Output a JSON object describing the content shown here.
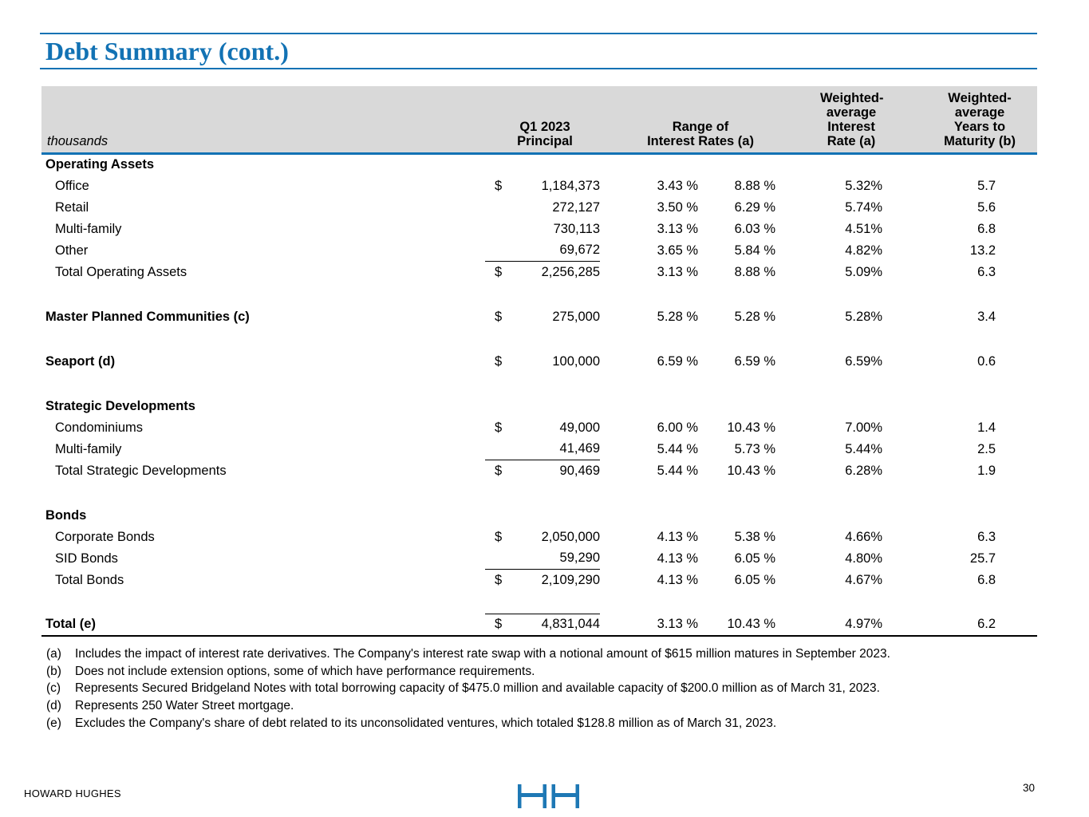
{
  "page": {
    "title": "Debt Summary (cont.)",
    "footer_brand": "HOWARD HUGHES",
    "page_number": "30"
  },
  "colors": {
    "accent_blue": "#1272b4",
    "header_gray": "#d9d9d9",
    "logo_blue": "#1e78b5"
  },
  "table": {
    "unit_label": "thousands",
    "column_headers": [
      {
        "lines": [
          "Q1 2023",
          "Principal"
        ]
      },
      {
        "lines": [
          "Range of",
          "Interest Rates (a)"
        ]
      },
      {
        "lines": [
          "Weighted-",
          "average",
          "Interest",
          "Rate (a)"
        ]
      },
      {
        "lines": [
          "Weighted-",
          "average",
          "Years to",
          "Maturity (b)"
        ]
      }
    ],
    "rows": [
      {
        "style": "section",
        "label": "Operating Assets"
      },
      {
        "style": "item",
        "label": "Office",
        "dollar": "$",
        "principal": "1,184,373",
        "rate_min": "3.43 %",
        "rate_max": "8.88 %",
        "wa_rate": "5.32%",
        "wa_years": "5.7"
      },
      {
        "style": "item",
        "label": "Retail",
        "dollar": "",
        "principal": "272,127",
        "rate_min": "3.50 %",
        "rate_max": "6.29 %",
        "wa_rate": "5.74%",
        "wa_years": "5.6"
      },
      {
        "style": "item",
        "label": "Multi-family",
        "dollar": "",
        "principal": "730,113",
        "rate_min": "3.13 %",
        "rate_max": "6.03 %",
        "wa_rate": "4.51%",
        "wa_years": "6.8"
      },
      {
        "style": "item",
        "label": "Other",
        "dollar": "",
        "principal": "69,672",
        "rate_min": "3.65 %",
        "rate_max": "5.84 %",
        "wa_rate": "4.82%",
        "wa_years": "13.2",
        "underline": true
      },
      {
        "style": "item",
        "label": "Total Operating Assets",
        "dollar": "$",
        "principal": "2,256,285",
        "rate_min": "3.13 %",
        "rate_max": "8.88 %",
        "wa_rate": "5.09%",
        "wa_years": "6.3"
      },
      {
        "style": "spacer"
      },
      {
        "style": "section-data",
        "label": "Master Planned Communities (c)",
        "dollar": "$",
        "principal": "275,000",
        "rate_min": "5.28 %",
        "rate_max": "5.28 %",
        "wa_rate": "5.28%",
        "wa_years": "3.4"
      },
      {
        "style": "spacer"
      },
      {
        "style": "section-data",
        "label": "Seaport (d)",
        "dollar": "$",
        "principal": "100,000",
        "rate_min": "6.59 %",
        "rate_max": "6.59 %",
        "wa_rate": "6.59%",
        "wa_years": "0.6"
      },
      {
        "style": "spacer"
      },
      {
        "style": "section",
        "label": "Strategic Developments"
      },
      {
        "style": "item",
        "label": "Condominiums",
        "dollar": "$",
        "principal": "49,000",
        "rate_min": "6.00 %",
        "rate_max": "10.43 %",
        "wa_rate": "7.00%",
        "wa_years": "1.4"
      },
      {
        "style": "item",
        "label": "Multi-family",
        "dollar": "",
        "principal": "41,469",
        "rate_min": "5.44 %",
        "rate_max": "5.73 %",
        "wa_rate": "5.44%",
        "wa_years": "2.5",
        "underline": true
      },
      {
        "style": "item",
        "label": "Total Strategic Developments",
        "dollar": "$",
        "principal": "90,469",
        "rate_min": "5.44 %",
        "rate_max": "10.43 %",
        "wa_rate": "6.28%",
        "wa_years": "1.9"
      },
      {
        "style": "spacer"
      },
      {
        "style": "section",
        "label": "Bonds"
      },
      {
        "style": "item",
        "label": "Corporate Bonds",
        "dollar": "$",
        "principal": "2,050,000",
        "rate_min": "4.13 %",
        "rate_max": "5.38 %",
        "wa_rate": "4.66%",
        "wa_years": "6.3"
      },
      {
        "style": "item",
        "label": "SID Bonds",
        "dollar": "",
        "principal": "59,290",
        "rate_min": "4.13 %",
        "rate_max": "6.05 %",
        "wa_rate": "4.80%",
        "wa_years": "25.7",
        "underline": true
      },
      {
        "style": "item",
        "label": "Total Bonds",
        "dollar": "$",
        "principal": "2,109,290",
        "rate_min": "4.13 %",
        "rate_max": "6.05 %",
        "wa_rate": "4.67%",
        "wa_years": "6.8"
      },
      {
        "style": "spacer"
      },
      {
        "style": "grand-total",
        "label": "Total (e)",
        "dollar": "$",
        "principal": "4,831,044",
        "rate_min": "3.13 %",
        "rate_max": "10.43 %",
        "wa_rate": "4.97%",
        "wa_years": "6.2",
        "overline": true
      }
    ]
  },
  "footnotes": [
    {
      "marker": "(a)",
      "text": "Includes the impact of interest rate derivatives. The Company's interest rate swap with a notional amount of $615 million matures in September 2023."
    },
    {
      "marker": "(b)",
      "text": "Does not include extension options, some of which have performance requirements."
    },
    {
      "marker": "(c)",
      "text": "Represents Secured Bridgeland Notes with total borrowing capacity of $475.0 million and available capacity of $200.0 million as of March 31, 2023."
    },
    {
      "marker": "(d)",
      "text": "Represents 250 Water Street mortgage."
    },
    {
      "marker": "(e)",
      "text": "Excludes the Company's share of debt related to its unconsolidated ventures, which totaled $128.8 million as of March 31, 2023."
    }
  ]
}
